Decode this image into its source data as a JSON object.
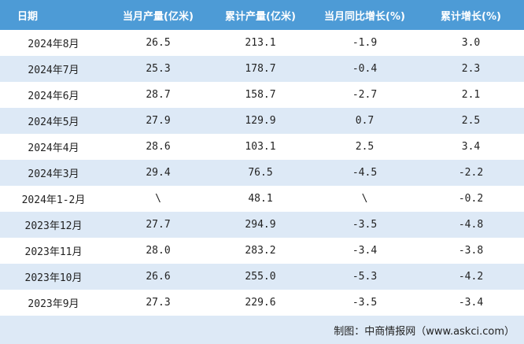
{
  "table": {
    "header": [
      "日期",
      "当月产量(亿米)",
      "累计产量(亿米)",
      "当月同比增长(%)",
      "累计增长(%)"
    ],
    "rows": [
      [
        "2024年8月",
        "26.5",
        "213.1",
        "-1.9",
        "3.0"
      ],
      [
        "2024年7月",
        "25.3",
        "178.7",
        "-0.4",
        "2.3"
      ],
      [
        "2024年6月",
        "28.7",
        "158.7",
        "-2.7",
        "2.1"
      ],
      [
        "2024年5月",
        "27.9",
        "129.9",
        "0.7",
        "2.5"
      ],
      [
        "2024年4月",
        "28.6",
        "103.1",
        "2.5",
        "3.4"
      ],
      [
        "2024年3月",
        "29.4",
        "76.5",
        "-4.5",
        "-2.2"
      ],
      [
        "2024年1-2月",
        "\\",
        "48.1",
        "\\",
        "-0.2"
      ],
      [
        "2023年12月",
        "27.7",
        "294.9",
        "-3.5",
        "-4.8"
      ],
      [
        "2023年11月",
        "28.0",
        "283.2",
        "-3.4",
        "-3.8"
      ],
      [
        "2023年10月",
        "26.6",
        "255.0",
        "-5.3",
        "-4.2"
      ],
      [
        "2023年9月",
        "27.3",
        "229.6",
        "-3.5",
        "-3.4"
      ]
    ]
  },
  "footer": {
    "source": "制图：中商情报网（www.askci.com）"
  }
}
